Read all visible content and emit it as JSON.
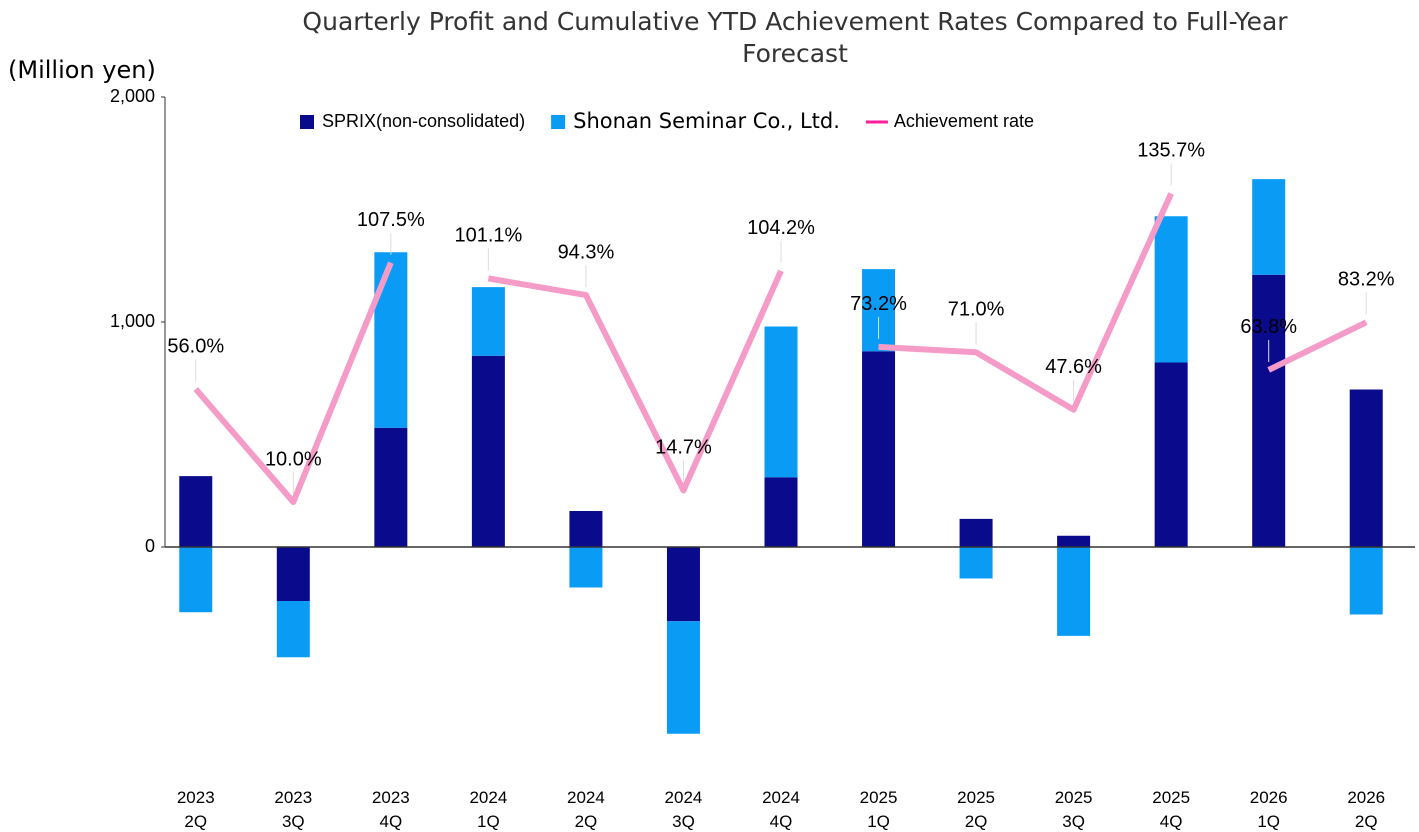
{
  "chart_data": {
    "type": "bar",
    "title": "Quarterly Profit and Cumulative YTD Achievement Rates Compared to Full-Year Forecast",
    "y_axis_label": "(Million yen)",
    "categories": [
      "2023 2Q",
      "2023 3Q",
      "2023 4Q",
      "2024 1Q",
      "2024 2Q",
      "2024 3Q",
      "2024 4Q",
      "2025 1Q",
      "2025 2Q",
      "2025 3Q",
      "2025 4Q",
      "2026 1Q",
      "2026 2Q"
    ],
    "stacked": true,
    "series": [
      {
        "name": "SPRIX(non-consolidated)",
        "color": "#0a0a8c",
        "values": [
          315,
          -240,
          530,
          850,
          160,
          -330,
          310,
          870,
          125,
          50,
          820,
          1210,
          700
        ]
      },
      {
        "name": "Shonan Seminar Co., Ltd.",
        "color": "#0a9cf5",
        "values": [
          -290,
          -250,
          780,
          305,
          -180,
          -500,
          670,
          365,
          -140,
          -395,
          650,
          425,
          -300
        ]
      },
      {
        "name": "Achievement rate",
        "type": "line",
        "axis": "y2",
        "color": "#f59bc8",
        "legend_color": "#ff1e9c",
        "values": [
          56.0,
          10.0,
          107.5,
          101.1,
          94.3,
          14.7,
          104.2,
          73.2,
          71.0,
          47.6,
          135.7,
          63.8,
          83.2
        ],
        "value_labels": [
          "56.0%",
          "10.0%",
          "107.5%",
          "101.1%",
          "94.3%",
          "14.7%",
          "104.2%",
          "73.2%",
          "71.0%",
          "47.6%",
          "135.7%",
          "63.8%",
          "83.2%"
        ],
        "breaks_before": [
          3,
          7,
          11
        ]
      }
    ],
    "ylim": [
      -1000,
      2000
    ],
    "yticks": [
      0,
      {
        "value": 1000,
        "label": "1,000"
      },
      {
        "value": 2000,
        "label": "2,000"
      }
    ],
    "y2lim": [
      -100,
      175
    ],
    "legend": "top"
  }
}
